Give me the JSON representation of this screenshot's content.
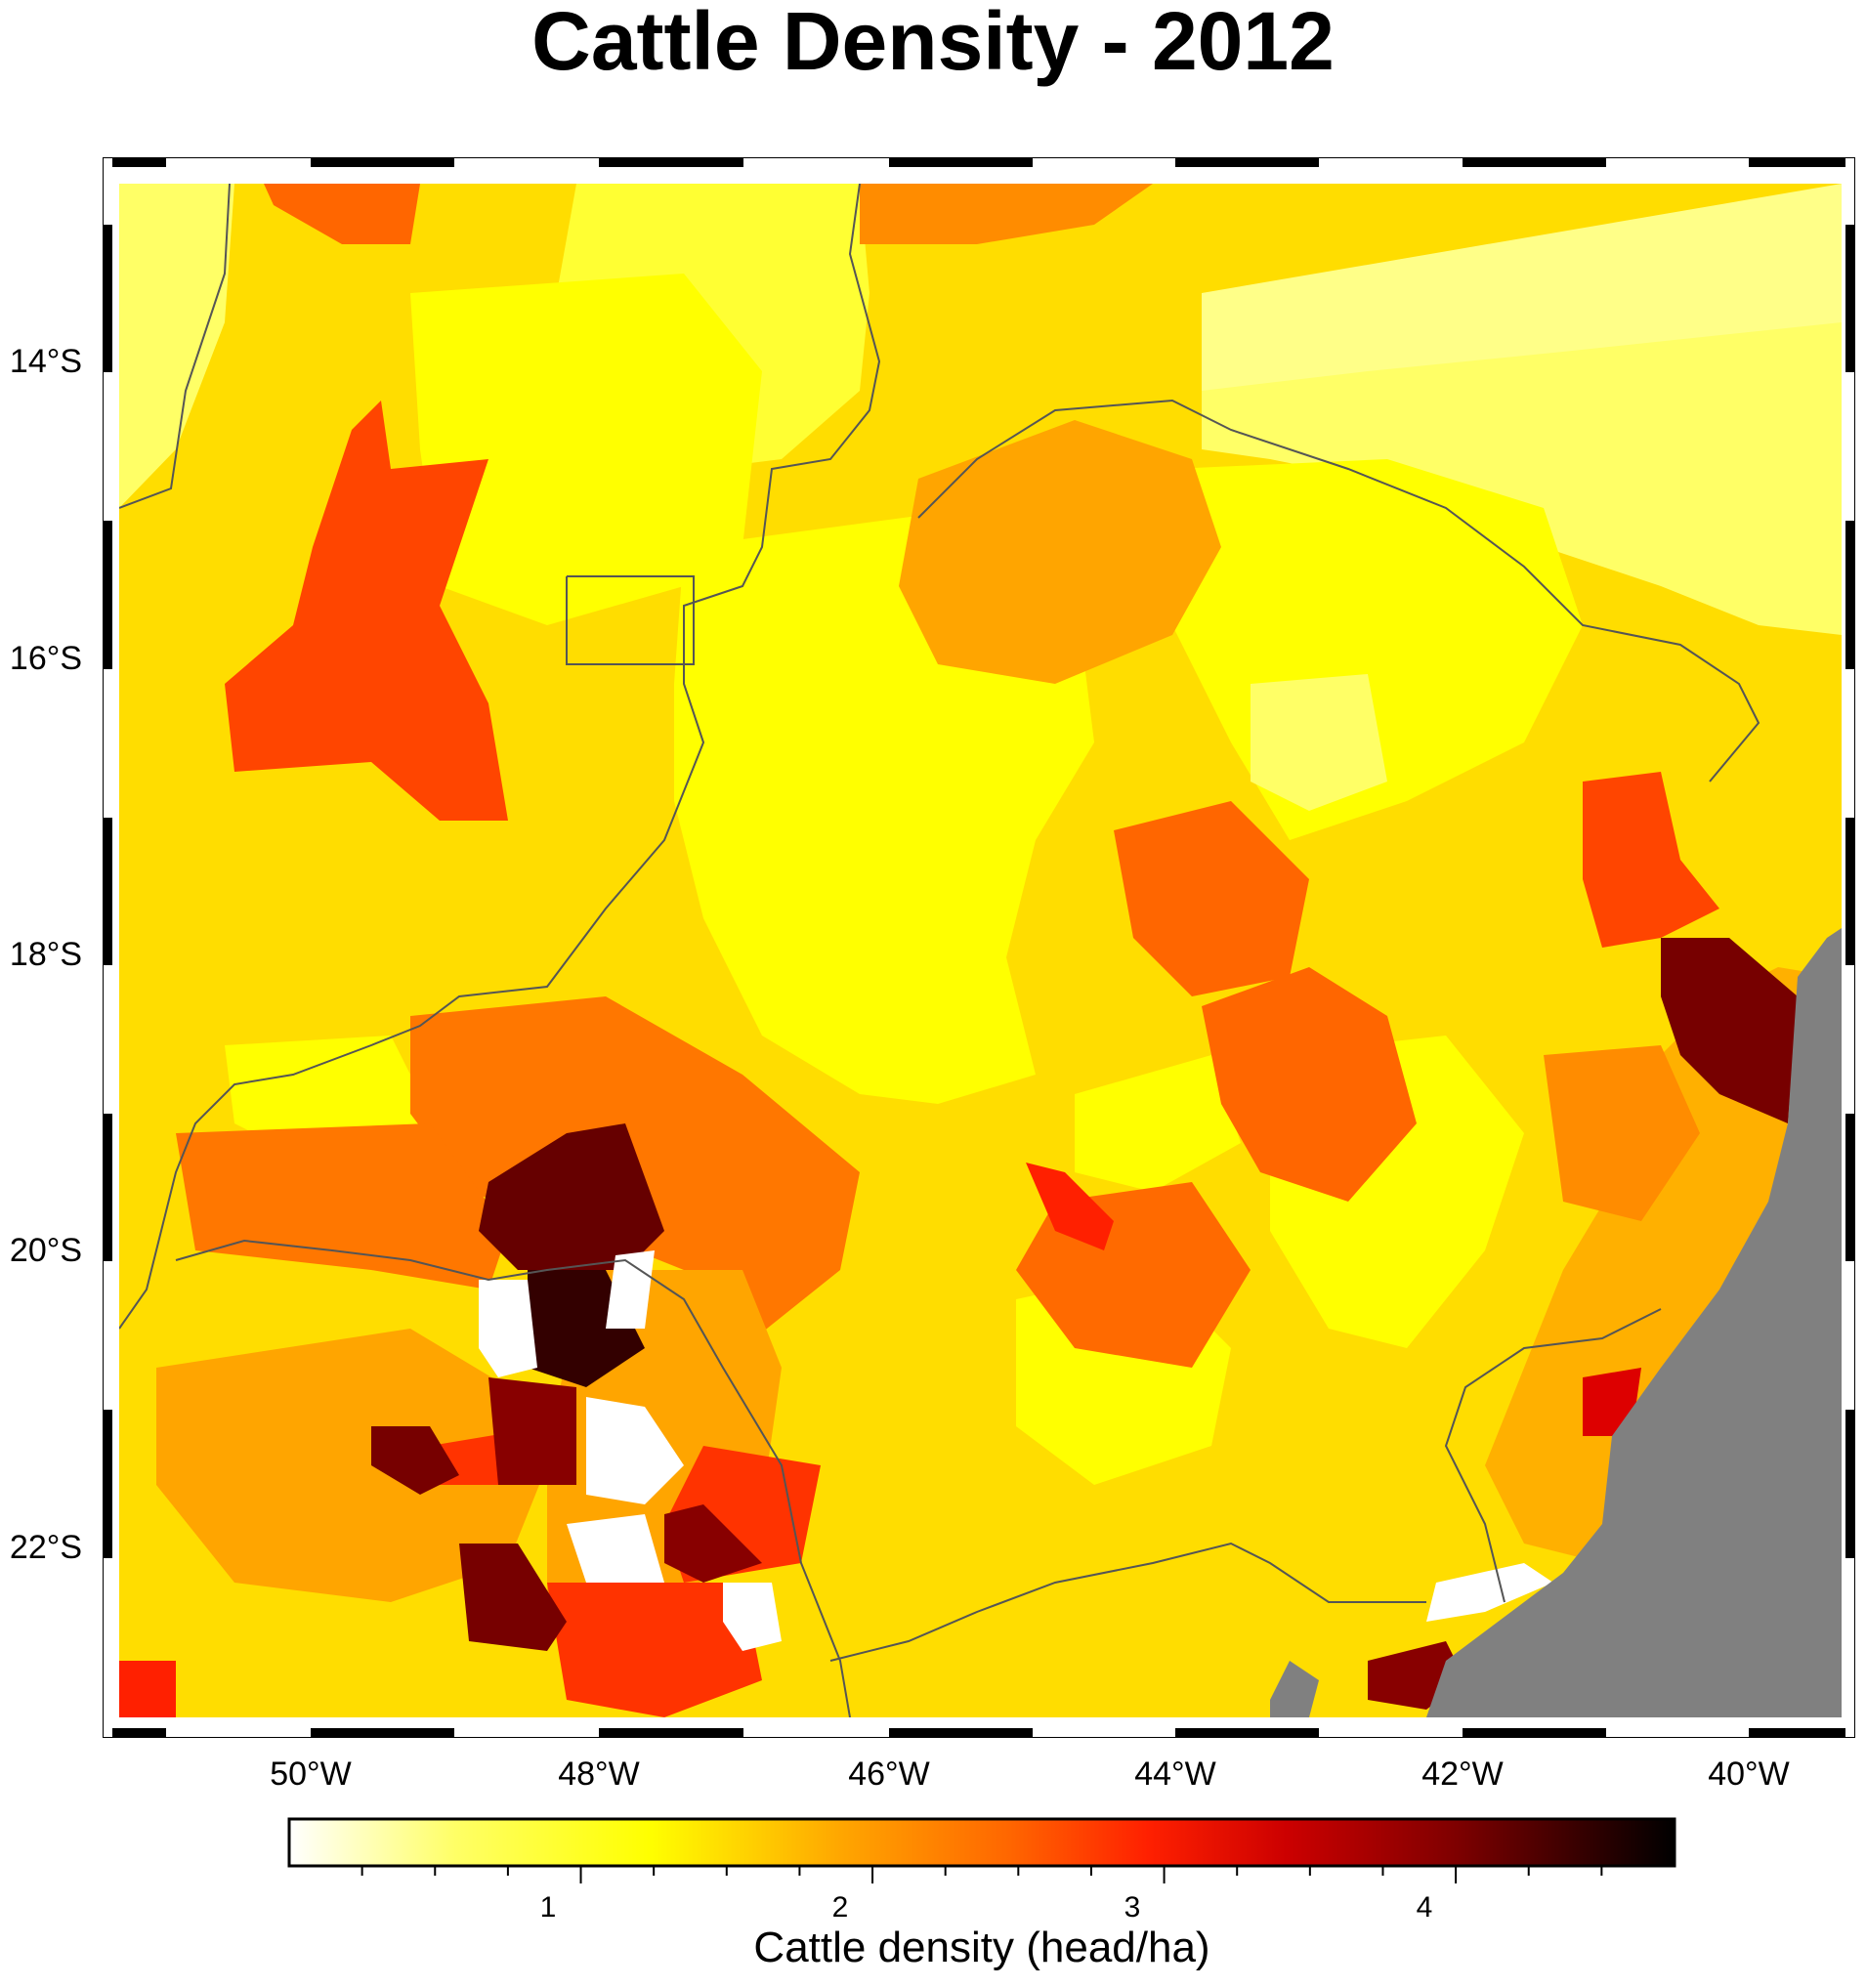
{
  "title": "Cattle Density - 2012",
  "map": {
    "lon_range": [
      -51.5,
      -39.3
    ],
    "lat_range": [
      -23.1,
      -12.5
    ],
    "longitude_labels": [
      "50°W",
      "48°W",
      "46°W",
      "44°W",
      "42°W",
      "40°W"
    ],
    "latitude_labels": [
      "14°S",
      "16°S",
      "18°S",
      "20°S",
      "22°S"
    ],
    "ocean_color": "#808080",
    "no_data_color": "#ffffff",
    "border_color": "#555555"
  },
  "colorbar": {
    "label": "Cattle density (head/ha)",
    "range": [
      0.0,
      4.75
    ],
    "tick_labels": [
      "1",
      "2",
      "3",
      "4"
    ],
    "colors": [
      "#ffffff",
      "#ffff66",
      "#ffff00",
      "#ffa500",
      "#ff6600",
      "#ff2000",
      "#cc0000",
      "#800000",
      "#000000"
    ]
  }
}
